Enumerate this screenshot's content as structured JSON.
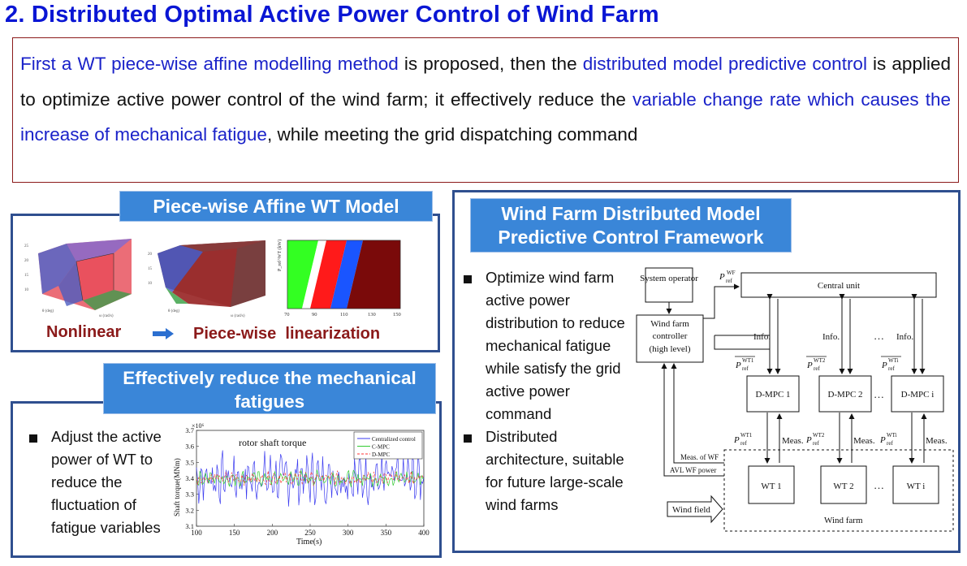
{
  "title": "2. Distributed Optimal Active Power Control of Wind Farm",
  "intro": {
    "s1": "First a WT piece-wise affine modelling method",
    "s2": " is proposed, then the ",
    "s3": "distributed model predictive control",
    "s4": " is applied to optimize active power control of the wind farm; it effectively reduce the ",
    "s5": "variable change rate which causes the increase of mechanical fatigue",
    "s6": ", while meeting the grid dispatching command"
  },
  "pwa": {
    "caption": "Piece-wise Affine WT Model",
    "label_left": "Nonlinear",
    "label_right": "Piece-wise  linearization",
    "plot3_xticks": [
      "70",
      "90",
      "110",
      "130",
      "150"
    ],
    "plot3_ylabel": "P_ref^WT (kW)"
  },
  "fatigue": {
    "caption": "Effectively reduce the mechanical fatigues",
    "bullet": "Adjust the active power of WT to reduce the fluctuation of fatigue variables"
  },
  "chart_data": {
    "type": "line",
    "title": "rotor shaft torque",
    "xlabel": "Time(s)",
    "ylabel": "Shaft torque(MNm)",
    "exponent_label": "×10⁶",
    "xlim": [
      100,
      400
    ],
    "ylim": [
      3.1,
      3.7
    ],
    "xticks": [
      100,
      150,
      200,
      250,
      300,
      350,
      400
    ],
    "yticks": [
      3.1,
      3.2,
      3.3,
      3.4,
      3.5,
      3.6,
      3.7
    ],
    "legend_position": "top-right",
    "series": [
      {
        "name": "Centralized control",
        "color": "#3b3bf0",
        "amplitude": 0.13
      },
      {
        "name": "C-MPC",
        "color": "#33cc33",
        "amplitude": 0.04
      },
      {
        "name": "D-MPC",
        "color": "#ff3333",
        "amplitude": 0.035
      }
    ]
  },
  "dmpc": {
    "caption": "Wind Farm Distributed Model Predictive Control Framework",
    "bullet1": "Optimize wind farm active power distribution to reduce mechanical fatigue while satisfy the grid active power command",
    "bullet2": "Distributed architecture, suitable for future large-scale wind farms"
  },
  "diagram": {
    "system_operator": "System operator",
    "controller": [
      "Wind farm",
      "controller",
      "(high level)"
    ],
    "central_unit": "Central unit",
    "p_ref_wf": "P",
    "info": "Info.",
    "dots": "…",
    "dmpc": [
      "D-MPC 1",
      "D-MPC 2",
      "D-MPC i"
    ],
    "wt": [
      "WT 1",
      "WT 2",
      "WT i"
    ],
    "meas": "Meas.",
    "meas_wf": "Meas. of WF",
    "avl_wf": "AVL WF power",
    "wind_field": "Wind field",
    "wind_farm": "Wind farm"
  },
  "colors": {
    "title": "#0a16d4",
    "highlight": "#1a22c9",
    "caption_bg": "#3a86d8",
    "panel_border": "#2f4f8f",
    "dark_red": "#8b1a1a"
  }
}
